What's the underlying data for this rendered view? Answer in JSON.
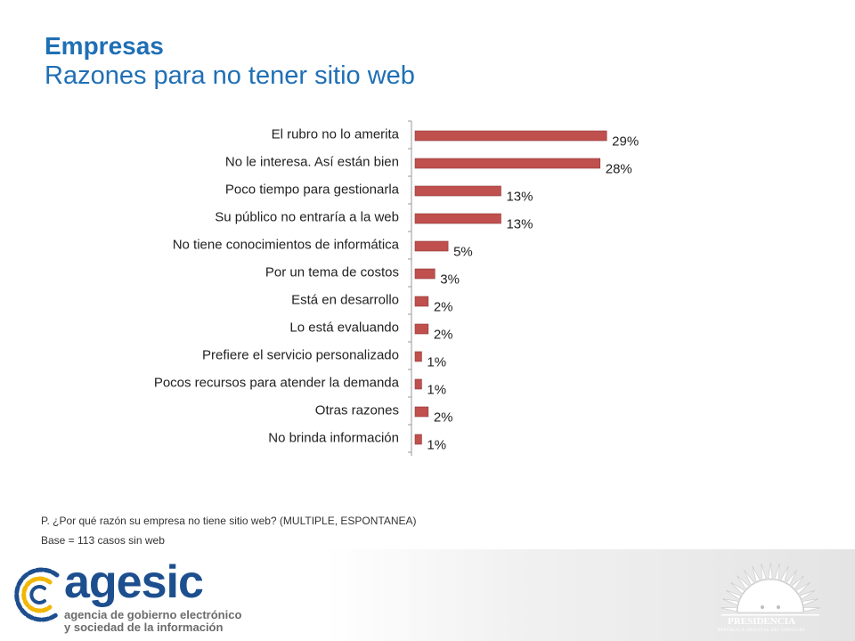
{
  "title": {
    "line1": "Empresas",
    "line2": "Razones para no tener sitio web"
  },
  "chart_data": {
    "type": "bar",
    "orientation": "horizontal",
    "categories": [
      "El rubro no lo amerita",
      "No le interesa. Así están bien",
      "Poco tiempo para gestionarla",
      "Su público no entraría a la web",
      "No tiene conocimientos de informática",
      "Por un tema de costos",
      "Está en desarrollo",
      "Lo está evaluando",
      "Prefiere el servicio personalizado",
      "Pocos recursos para atender la demanda",
      "Otras razones",
      "No brinda información"
    ],
    "values": [
      29,
      28,
      13,
      13,
      5,
      3,
      2,
      2,
      1,
      1,
      2,
      1
    ],
    "value_labels": [
      "29%",
      "28%",
      "13%",
      "13%",
      "5%",
      "3%",
      "2%",
      "2%",
      "1%",
      "1%",
      "2%",
      "1%"
    ],
    "xlim": [
      0,
      40
    ],
    "grid": false,
    "legend": "none",
    "bar_color": "#c0504d",
    "axis_color": "#999999"
  },
  "footnotes": {
    "question": "P. ¿Por qué razón su empresa no tiene sitio web? (MULTIPLE, ESPONTANEA)",
    "base": "Base = 113 casos sin web"
  },
  "footer": {
    "agesic_name": "agesic",
    "agesic_line1": "agencia de gobierno electrónico",
    "agesic_line2": "y sociedad de la información",
    "presidencia_name": "PRESIDENCIA",
    "presidencia_sub": "REPÚBLICA ORIENTAL DEL URUGUAY",
    "agesic_colors": [
      "#1d4f8f",
      "#f2b705"
    ]
  }
}
